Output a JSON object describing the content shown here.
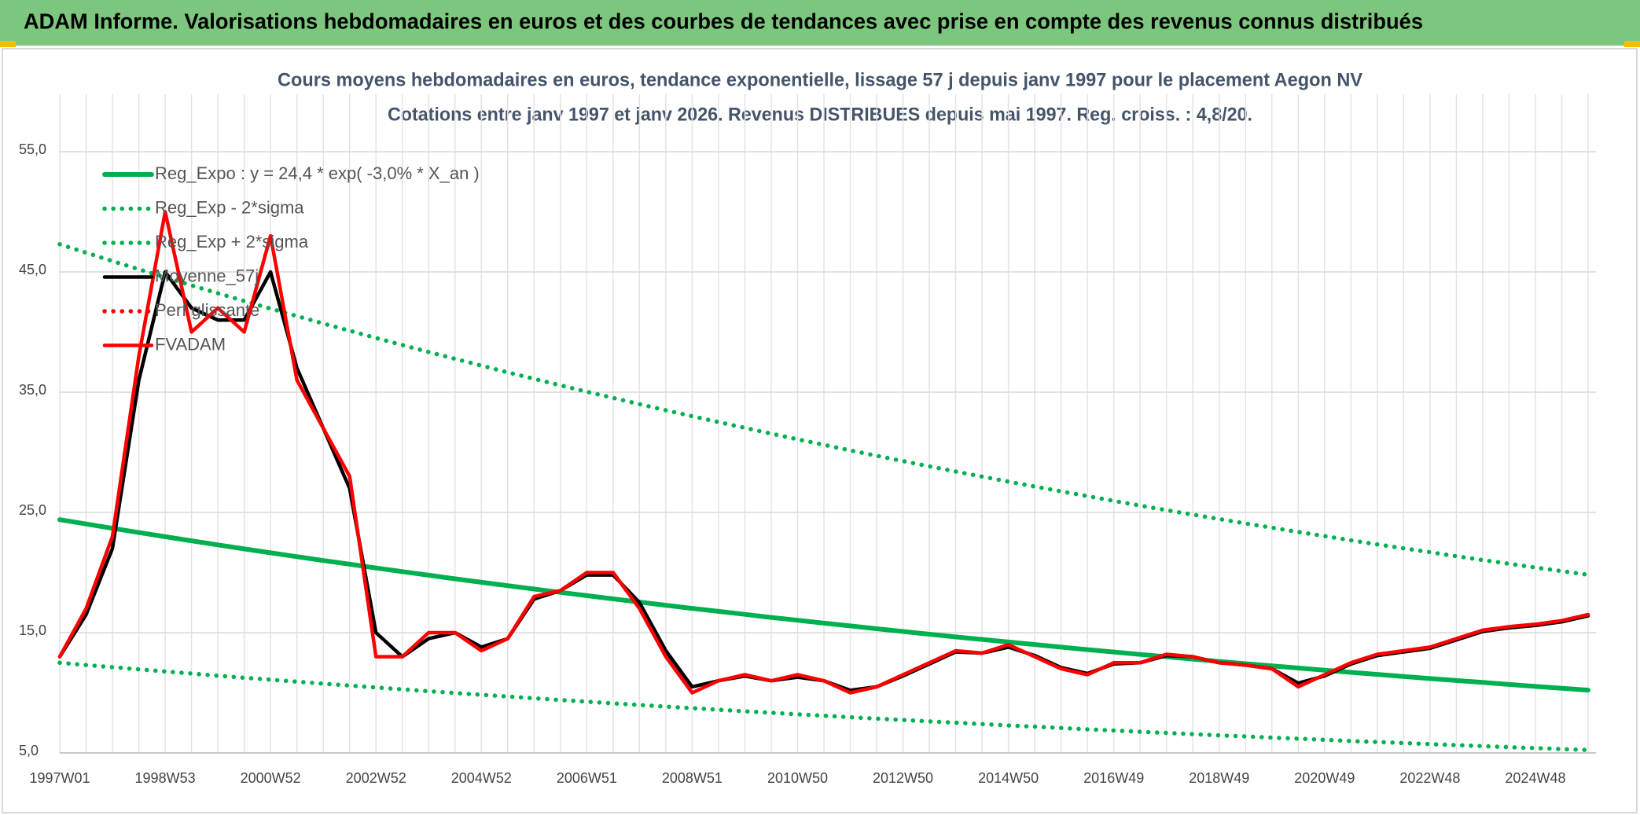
{
  "header": {
    "title": "ADAM Informe. Valorisations hebdomadaires en euros et des courbes de tendances avec prise en compte des revenus connus distribués"
  },
  "chart_data": {
    "type": "line",
    "title": "Cours moyens hebdomadaires en euros, tendance exponentielle, lissage 57 j depuis janv 1997 pour le placement Aegon NV",
    "subtitle": "Cotations entre janv 1997 et janv 2026. Revenus DISTRIBUES depuis mai 1997. Reg. croiss. : 4,8/20.",
    "categories": [
      "1997W01",
      null,
      null,
      null,
      "1998W53",
      null,
      null,
      null,
      "2000W52",
      null,
      null,
      null,
      "2002W52",
      null,
      null,
      null,
      "2004W52",
      null,
      null,
      null,
      "2006W51",
      null,
      null,
      null,
      "2008W51",
      null,
      null,
      null,
      "2010W50",
      null,
      null,
      null,
      "2012W50",
      null,
      null,
      null,
      "2014W50",
      null,
      null,
      null,
      "2016W49",
      null,
      null,
      null,
      "2018W49",
      null,
      null,
      null,
      "2020W49",
      null,
      null,
      null,
      "2022W48",
      null,
      null,
      null,
      "2024W48",
      null,
      null
    ],
    "ylim": [
      5,
      55
    ],
    "yticks": [
      {
        "value": 5,
        "label": "5,0"
      },
      {
        "value": 15,
        "label": "15,0"
      },
      {
        "value": 25,
        "label": "25,0"
      },
      {
        "value": 35,
        "label": "35,0"
      },
      {
        "value": 45,
        "label": "45,0"
      },
      {
        "value": 55,
        "label": "55,0"
      }
    ],
    "grid": true,
    "legend": "top-left",
    "series": [
      {
        "name": "Reg_Expo : y = 24,4 * exp( -3,0% *  X_an )",
        "color": "#00b050",
        "style": "solid",
        "values": [
          24.4,
          24.04,
          23.68,
          23.33,
          22.98,
          22.64,
          22.3,
          21.97,
          21.64,
          21.32,
          21.0,
          20.69,
          20.38,
          20.08,
          19.78,
          19.48,
          19.19,
          18.91,
          18.63,
          18.35,
          18.08,
          17.81,
          17.54,
          17.28,
          17.02,
          16.77,
          16.52,
          16.27,
          16.03,
          15.79,
          15.56,
          15.33,
          15.1,
          14.87,
          14.65,
          14.44,
          14.22,
          14.01,
          13.8,
          13.59,
          13.39,
          13.19,
          13.0,
          12.8,
          12.61,
          12.42,
          12.24,
          12.06,
          11.88,
          11.7,
          11.53,
          11.35,
          11.18,
          11.02,
          10.86,
          10.69,
          10.53,
          10.38,
          10.22
        ]
      },
      {
        "name": "Reg_Exp - 2*sigma",
        "color": "#00b050",
        "style": "dotted",
        "values": [
          12.5,
          12.31,
          12.13,
          11.95,
          11.77,
          11.6,
          11.42,
          11.25,
          11.09,
          10.92,
          10.76,
          10.6,
          10.44,
          10.29,
          10.13,
          9.98,
          9.83,
          9.69,
          9.54,
          9.4,
          9.26,
          9.12,
          8.99,
          8.85,
          8.72,
          8.59,
          8.46,
          8.34,
          8.21,
          8.09,
          7.97,
          7.85,
          7.74,
          7.62,
          7.51,
          7.4,
          7.28,
          7.18,
          7.07,
          6.96,
          6.86,
          6.76,
          6.66,
          6.56,
          6.46,
          6.37,
          6.27,
          6.18,
          6.09,
          5.99,
          5.91,
          5.82,
          5.73,
          5.65,
          5.56,
          5.48,
          5.4,
          5.32,
          5.24
        ]
      },
      {
        "name": "Reg_Exp + 2*sigma",
        "color": "#00b050",
        "style": "dotted",
        "values": [
          47.3,
          46.6,
          45.9,
          45.22,
          44.55,
          43.88,
          43.23,
          42.58,
          41.95,
          41.33,
          40.71,
          40.11,
          39.51,
          38.92,
          38.34,
          37.77,
          37.21,
          36.65,
          36.11,
          35.57,
          35.04,
          34.52,
          34.0,
          33.5,
          33.0,
          32.51,
          32.03,
          31.55,
          31.08,
          30.62,
          30.16,
          29.71,
          29.27,
          28.83,
          28.4,
          27.98,
          27.56,
          27.15,
          26.75,
          26.35,
          25.96,
          25.57,
          25.19,
          24.82,
          24.45,
          24.08,
          23.73,
          23.37,
          23.03,
          22.68,
          22.34,
          22.01,
          21.69,
          21.36,
          21.04,
          20.73,
          20.42,
          20.12,
          19.82
        ]
      },
      {
        "name": "Moyenne_57j",
        "color": "#000000",
        "style": "solid",
        "values": [
          13,
          16.5,
          22,
          36,
          45,
          42,
          41,
          41,
          45,
          37,
          32,
          27,
          15,
          13,
          14.5,
          15,
          13.8,
          14.5,
          17.8,
          18.5,
          19.8,
          19.8,
          17.5,
          13.5,
          10.5,
          11,
          11.4,
          11,
          11.3,
          11,
          10.2,
          10.5,
          11.4,
          12.4,
          13.4,
          13.3,
          13.8,
          13.1,
          12.1,
          11.6,
          12.4,
          12.5,
          13.1,
          13,
          12.5,
          12.3,
          12,
          10.8,
          11.4,
          12.4,
          13.1,
          13.4,
          13.7,
          14.4,
          15.1,
          15.4,
          15.6,
          15.9,
          16.4
        ]
      },
      {
        "name": "Perf glissante",
        "color": "#ff0000",
        "style": "dotted",
        "values": [
          null,
          null,
          null,
          null,
          null,
          null,
          null,
          null,
          null,
          null,
          null,
          null,
          null,
          null,
          null,
          null,
          null,
          null,
          null,
          null,
          null,
          null,
          null,
          null,
          null,
          null,
          null,
          null,
          null,
          null,
          null,
          null,
          null,
          null,
          null,
          null,
          null,
          null,
          null,
          null,
          null,
          null,
          null,
          null,
          null,
          null,
          null,
          null,
          null,
          null,
          null,
          null,
          null,
          null,
          null,
          null,
          null,
          null,
          null
        ]
      },
      {
        "name": "FVADAM",
        "color": "#ff0000",
        "style": "solid",
        "values": [
          13,
          17,
          23,
          38,
          50,
          40,
          42,
          40,
          48,
          36,
          32,
          28,
          13,
          13,
          15,
          15,
          13.5,
          14.5,
          18,
          18.5,
          20,
          20,
          17,
          13,
          10,
          11,
          11.5,
          11,
          11.5,
          11,
          10,
          10.5,
          11.5,
          12.5,
          13.5,
          13.3,
          14,
          13,
          12,
          11.5,
          12.5,
          12.5,
          13.2,
          13,
          12.5,
          12.3,
          12,
          10.5,
          11.5,
          12.5,
          13.2,
          13.5,
          13.8,
          14.5,
          15.2,
          15.5,
          15.7,
          16,
          16.5
        ]
      }
    ]
  }
}
